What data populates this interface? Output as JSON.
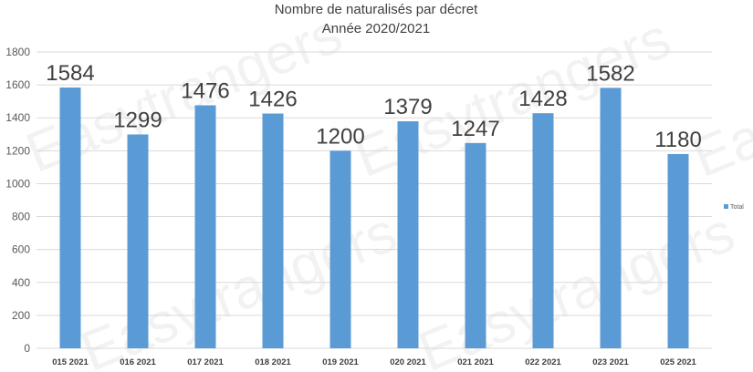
{
  "chart_data": {
    "type": "bar",
    "title": "Nombre de naturalisés par décret",
    "subtitle": "Année 2020/2021",
    "categories": [
      "015 2021",
      "016 2021",
      "017 2021",
      "018 2021",
      "019 2021",
      "020 2021",
      "021 2021",
      "022 2021",
      "023 2021",
      "025 2021"
    ],
    "series": [
      {
        "name": "Total",
        "values": [
          1584,
          1299,
          1476,
          1426,
          1200,
          1379,
          1247,
          1428,
          1582,
          1180
        ]
      }
    ],
    "ylim": [
      0,
      1800
    ],
    "yticks": [
      0,
      200,
      400,
      600,
      800,
      1000,
      1200,
      1400,
      1600,
      1800
    ],
    "grid": true,
    "legend_position": "right",
    "bar_color": "#5b9bd5",
    "watermark_text": "Easytrangers"
  }
}
